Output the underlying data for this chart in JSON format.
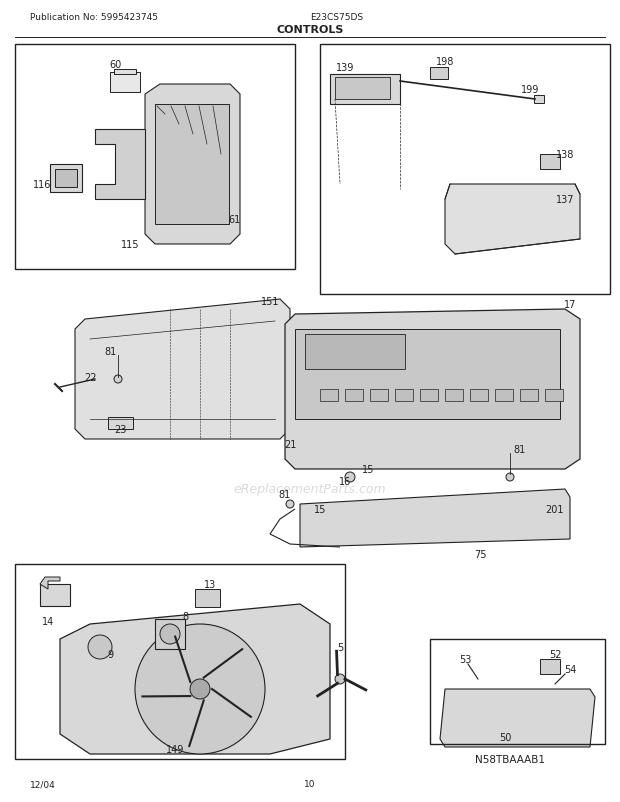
{
  "pub_no": "Publication No: 5995423745",
  "model": "E23CS75DS",
  "title": "CONTROLS",
  "page": "10",
  "date": "12/04",
  "watermark": "eReplacementParts.com",
  "bg_color": "#ffffff",
  "line_color": "#222222",
  "text_color": "#222222",
  "light_gray": "#aaaaaa",
  "med_gray": "#888888",
  "border_color": "#555555"
}
